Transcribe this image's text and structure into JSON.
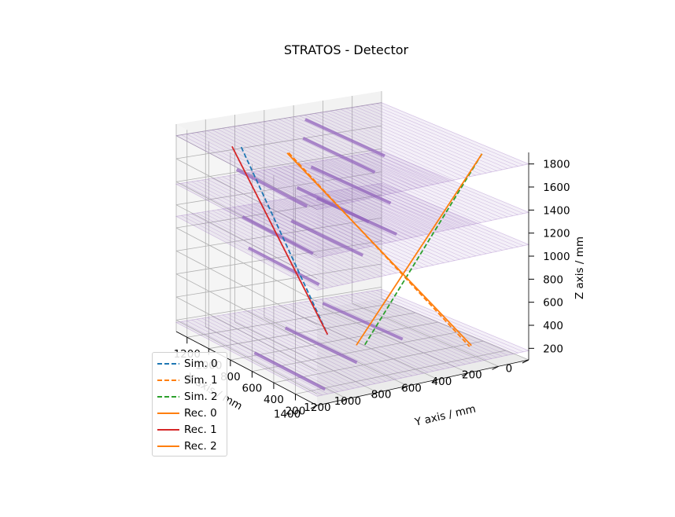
{
  "chart_data": {
    "type": "line3d",
    "title": "STRATOS - Detector",
    "xlabel": "X axis / mm",
    "ylabel": "Y axis / mm",
    "zlabel": "Z axis / mm",
    "xlim": [
      0,
      1400
    ],
    "ylim": [
      0,
      1300
    ],
    "zlim": [
      100,
      1900
    ],
    "xticks": [
      0,
      200,
      400,
      600,
      800,
      1000,
      1200,
      1400
    ],
    "yticks": [
      200,
      400,
      600,
      800,
      1000,
      1200
    ],
    "zticks": [
      200,
      400,
      600,
      800,
      1000,
      1200,
      1400,
      1600,
      1800
    ],
    "detector_planes_z": [
      180,
      1100,
      1380,
      1800
    ],
    "detector_color": "#9467bd",
    "series": [
      {
        "name": "Sim. 0",
        "style": "dashed",
        "color": "#1f77b4",
        "start": [
          1180,
          1000,
          1800
        ],
        "end": [
          760,
          780,
          180
        ]
      },
      {
        "name": "Sim. 1",
        "style": "dashed",
        "color": "#ff7f0e",
        "start": [
          1000,
          810,
          1800
        ],
        "end": [
          220,
          230,
          180
        ]
      },
      {
        "name": "Sim. 2",
        "style": "dashed",
        "color": "#2ca02c",
        "start": [
          100,
          280,
          1800
        ],
        "end": [
          700,
          530,
          180
        ]
      },
      {
        "name": "Rec. 0",
        "style": "solid",
        "color": "#ff7f0e",
        "start": [
          100,
          280,
          1800
        ],
        "end": [
          730,
          560,
          180
        ]
      },
      {
        "name": "Rec. 1",
        "style": "solid",
        "color": "#d62728",
        "start": [
          1220,
          1030,
          1800
        ],
        "end": [
          760,
          780,
          180
        ]
      },
      {
        "name": "Rec. 2",
        "style": "solid",
        "color": "#ff7f0e",
        "start": [
          1010,
          810,
          1800
        ],
        "end": [
          200,
          240,
          180
        ]
      }
    ]
  }
}
